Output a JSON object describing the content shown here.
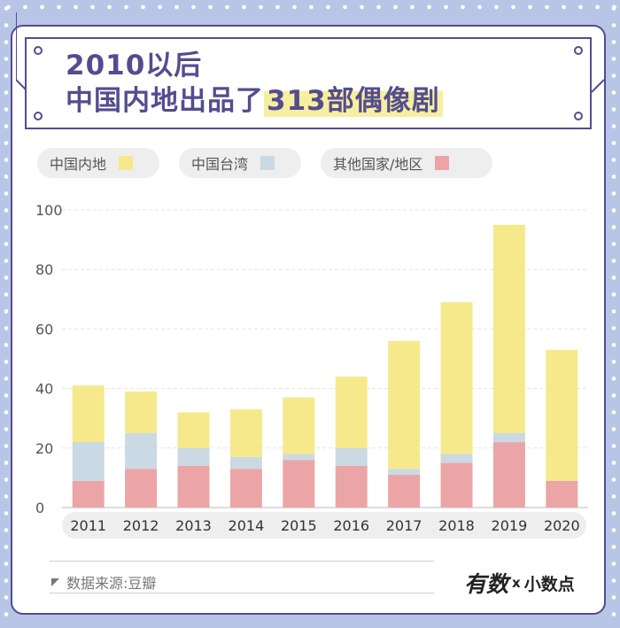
{
  "header": {
    "line1": "2010以后",
    "line2_prefix": "中国内地出品了",
    "line2_highlight": "313部偶像剧"
  },
  "legend": [
    {
      "label": "中国内地",
      "color": "#f6e98b"
    },
    {
      "label": "中国台湾",
      "color": "#cad9e3"
    },
    {
      "label": "其他国家/地区",
      "color": "#eca5a6"
    }
  ],
  "chart_data": {
    "type": "bar",
    "stacked": true,
    "categories": [
      "2011",
      "2012",
      "2013",
      "2014",
      "2015",
      "2016",
      "2017",
      "2018",
      "2019",
      "2020"
    ],
    "series": [
      {
        "name": "其他国家/地区",
        "color": "#eca5a6",
        "values": [
          9,
          13,
          14,
          13,
          16,
          14,
          11,
          15,
          22,
          9
        ]
      },
      {
        "name": "中国台湾",
        "color": "#cad9e3",
        "values": [
          13,
          12,
          6,
          4,
          2,
          6,
          2,
          3,
          3,
          0
        ]
      },
      {
        "name": "中国内地",
        "color": "#f6e98b",
        "values": [
          19,
          14,
          12,
          16,
          19,
          24,
          43,
          51,
          70,
          44
        ]
      }
    ],
    "yticks": [
      "0",
      "20",
      "40",
      "60",
      "80",
      "100"
    ],
    "ylim": [
      0,
      100
    ],
    "grid": true
  },
  "footer": {
    "source": "数据来源:豆瓣",
    "logo_main": "有数",
    "logo_x": "x",
    "logo_sub": "小数点"
  }
}
